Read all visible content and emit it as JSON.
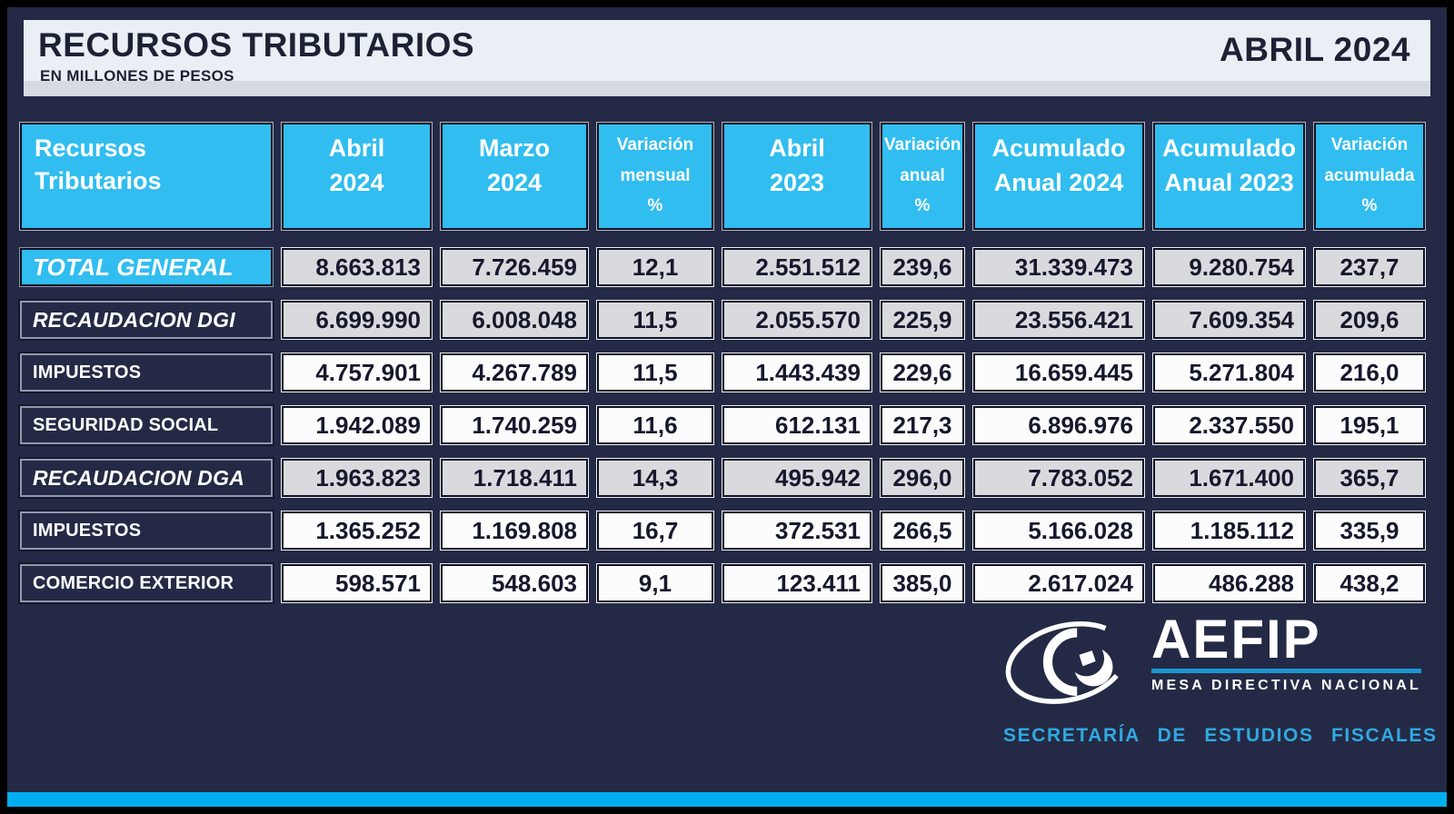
{
  "colors": {
    "frame": "#000000",
    "background": "#242a45",
    "band-bg": "#eaeef5",
    "band-strip": "#d6dae2",
    "band-text": "#1c2134",
    "cyan": "#31bdf0",
    "cyan-deep": "#00aeef",
    "gray-cell": "#d9dade",
    "white-cell": "#fcfcfd",
    "number-text": "#16182c",
    "label-border": "#9298ac",
    "logo-cyan": "#2fa9e2",
    "logo-rule": "#1d96d2"
  },
  "header": {
    "title": "RECURSOS TRIBUTARIOS",
    "subtitle": "EN MILLONES DE PESOS",
    "period": "ABRIL 2024"
  },
  "table": {
    "corner": {
      "line1": "Recursos",
      "line2": "Tributarios"
    },
    "columns": [
      {
        "id": "abril-2024",
        "lines": [
          "Abril",
          "2024"
        ]
      },
      {
        "id": "marzo-2024",
        "lines": [
          "Marzo",
          "2024"
        ]
      },
      {
        "id": "variacion-mensual",
        "lines": [
          "Variación",
          "mensual",
          "%"
        ]
      },
      {
        "id": "abril-2023",
        "lines": [
          "Abril",
          "2023"
        ]
      },
      {
        "id": "variacion-anual",
        "lines": [
          "Variación",
          "anual",
          "%"
        ]
      },
      {
        "id": "acumulado-anual-2024",
        "lines": [
          "Acumulado",
          "Anual 2024"
        ]
      },
      {
        "id": "acumulado-anual-2023",
        "lines": [
          "Acumulado",
          "Anual 2023"
        ]
      },
      {
        "id": "variacion-acumulada",
        "lines": [
          "Variación",
          "acumulada",
          "%"
        ]
      }
    ],
    "rows": [
      {
        "label": "TOTAL GENERAL",
        "labelStyle": "total",
        "shade": "gray",
        "values": [
          "8.663.813",
          "7.726.459",
          "12,1",
          "2.551.512",
          "239,6",
          "31.339.473",
          "9.280.754",
          "237,7"
        ]
      },
      {
        "label": "RECAUDACION DGI",
        "labelStyle": "italic",
        "shade": "gray",
        "values": [
          "6.699.990",
          "6.008.048",
          "11,5",
          "2.055.570",
          "225,9",
          "23.556.421",
          "7.609.354",
          "209,6"
        ]
      },
      {
        "label": "IMPUESTOS",
        "labelStyle": "plain",
        "shade": "white",
        "values": [
          "4.757.901",
          "4.267.789",
          "11,5",
          "1.443.439",
          "229,6",
          "16.659.445",
          "5.271.804",
          "216,0"
        ]
      },
      {
        "label": "SEGURIDAD SOCIAL",
        "labelStyle": "plain",
        "shade": "white",
        "values": [
          "1.942.089",
          "1.740.259",
          "11,6",
          "612.131",
          "217,3",
          "6.896.976",
          "2.337.550",
          "195,1"
        ]
      },
      {
        "label": "RECAUDACION DGA",
        "labelStyle": "italic",
        "shade": "gray",
        "values": [
          "1.963.823",
          "1.718.411",
          "14,3",
          "495.942",
          "296,0",
          "7.783.052",
          "1.671.400",
          "365,7"
        ]
      },
      {
        "label": "IMPUESTOS",
        "labelStyle": "plain",
        "shade": "white",
        "values": [
          "1.365.252",
          "1.169.808",
          "16,7",
          "372.531",
          "266,5",
          "5.166.028",
          "1.185.112",
          "335,9"
        ]
      },
      {
        "label": "COMERCIO EXTERIOR",
        "labelStyle": "plain",
        "shade": "white",
        "values": [
          "598.571",
          "548.603",
          "9,1",
          "123.411",
          "385,0",
          "2.617.024",
          "486.288",
          "438,2"
        ]
      }
    ]
  },
  "logo": {
    "acronym": "AEFIP",
    "line1": "MESA DIRECTIVA NACIONAL",
    "line2": "SECRETARÍA DE ESTUDIOS FISCALES",
    "eye_icon": "aefip-eye-icon"
  },
  "chart_data": {
    "type": "table",
    "title": "RECURSOS TRIBUTARIOS",
    "subtitle": "EN MILLONES DE PESOS",
    "period": "ABRIL 2024",
    "columns": [
      "Recursos Tributarios",
      "Abril 2024",
      "Marzo 2024",
      "Variación mensual %",
      "Abril 2023",
      "Variación anual %",
      "Acumulado Anual 2024",
      "Acumulado Anual 2023",
      "Variación acumulada %"
    ],
    "rows": [
      [
        "TOTAL GENERAL",
        "8.663.813",
        "7.726.459",
        "12,1",
        "2.551.512",
        "239,6",
        "31.339.473",
        "9.280.754",
        "237,7"
      ],
      [
        "RECAUDACION DGI",
        "6.699.990",
        "6.008.048",
        "11,5",
        "2.055.570",
        "225,9",
        "23.556.421",
        "7.609.354",
        "209,6"
      ],
      [
        "IMPUESTOS",
        "4.757.901",
        "4.267.789",
        "11,5",
        "1.443.439",
        "229,6",
        "16.659.445",
        "5.271.804",
        "216,0"
      ],
      [
        "SEGURIDAD SOCIAL",
        "1.942.089",
        "1.740.259",
        "11,6",
        "612.131",
        "217,3",
        "6.896.976",
        "2.337.550",
        "195,1"
      ],
      [
        "RECAUDACION DGA",
        "1.963.823",
        "1.718.411",
        "14,3",
        "495.942",
        "296,0",
        "7.783.052",
        "1.671.400",
        "365,7"
      ],
      [
        "IMPUESTOS",
        "1.365.252",
        "1.169.808",
        "16,7",
        "372.531",
        "266,5",
        "5.166.028",
        "1.185.112",
        "335,9"
      ],
      [
        "COMERCIO EXTERIOR",
        "598.571",
        "548.603",
        "9,1",
        "123.411",
        "385,0",
        "2.617.024",
        "486.288",
        "438,2"
      ]
    ]
  }
}
